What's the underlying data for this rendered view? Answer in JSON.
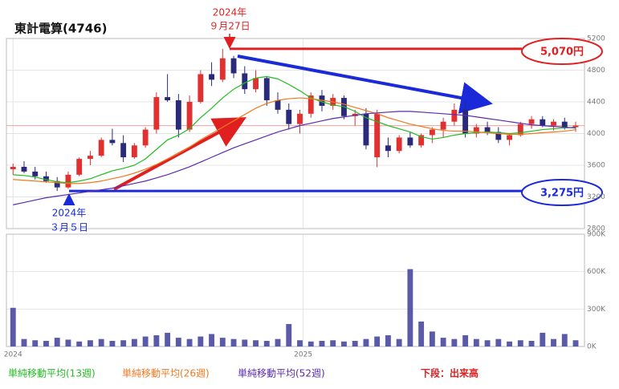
{
  "chart_data": {
    "type": "candlestick",
    "title": "東計電算(4746)",
    "x": [
      0,
      1,
      2,
      3,
      4,
      5,
      6,
      7,
      8,
      9,
      10,
      11,
      12,
      13,
      14,
      15,
      16,
      17,
      18,
      19,
      20,
      21,
      22,
      23,
      24,
      25,
      26,
      27,
      28,
      29,
      30,
      31,
      32,
      33,
      34,
      35,
      36,
      37,
      38,
      39,
      40,
      41,
      42,
      43,
      44,
      45,
      46,
      47,
      48,
      49,
      50,
      51
    ],
    "open": [
      3550,
      3580,
      3520,
      3460,
      3400,
      3320,
      3480,
      3680,
      3720,
      3920,
      3880,
      3700,
      3850,
      4050,
      4460,
      4420,
      4050,
      4400,
      4750,
      4680,
      4950,
      4760,
      4560,
      4700,
      4420,
      4300,
      4120,
      4250,
      4480,
      4350,
      4450,
      4220,
      4250,
      3700,
      3850,
      3780,
      3950,
      3850,
      3980,
      4050,
      4150,
      4300,
      4000,
      4080,
      4020,
      3920,
      3980,
      4120,
      4180,
      4100,
      4150,
      4080
    ],
    "high": [
      3620,
      3650,
      3580,
      3520,
      3450,
      3520,
      3700,
      3780,
      3950,
      4060,
      3980,
      3880,
      4080,
      4520,
      4750,
      4500,
      4480,
      4800,
      4900,
      5070,
      4980,
      4850,
      4800,
      4720,
      4520,
      4380,
      4300,
      4520,
      4550,
      4500,
      4480,
      4300,
      4320,
      4300,
      3950,
      3980,
      4020,
      4000,
      4080,
      4200,
      4380,
      4420,
      4120,
      4150,
      4080,
      4000,
      4150,
      4220,
      4220,
      4180,
      4200,
      4150
    ],
    "low": [
      3480,
      3500,
      3420,
      3380,
      3275,
      3300,
      3460,
      3600,
      3700,
      3850,
      3640,
      3680,
      3820,
      4000,
      4400,
      3950,
      4020,
      4380,
      4600,
      4650,
      4700,
      4500,
      4520,
      4350,
      4250,
      4050,
      4000,
      4200,
      4280,
      4300,
      4180,
      4100,
      3800,
      3575,
      3700,
      3750,
      3820,
      3820,
      3880,
      3950,
      4100,
      3950,
      3950,
      3980,
      3880,
      3850,
      3960,
      4060,
      4080,
      4040,
      4050,
      4020
    ],
    "close": [
      3580,
      3520,
      3460,
      3400,
      3320,
      3480,
      3680,
      3720,
      3920,
      3880,
      3700,
      3850,
      4050,
      4460,
      4420,
      4050,
      4400,
      4750,
      4680,
      4950,
      4760,
      4560,
      4700,
      4420,
      4300,
      4120,
      4250,
      4480,
      4350,
      4450,
      4220,
      4250,
      3850,
      4250,
      3780,
      3950,
      3850,
      3980,
      4050,
      4150,
      4300,
      4000,
      4080,
      4020,
      3920,
      3980,
      4120,
      4180,
      4100,
      4150,
      4080,
      4100
    ],
    "volume": [
      310000,
      60000,
      50000,
      45000,
      70000,
      55000,
      40000,
      50000,
      60000,
      45000,
      50000,
      60000,
      80000,
      90000,
      110000,
      70000,
      60000,
      80000,
      100000,
      70000,
      60000,
      55000,
      50000,
      45000,
      60000,
      180000,
      50000,
      40000,
      45000,
      50000,
      40000,
      45000,
      60000,
      80000,
      90000,
      60000,
      620000,
      200000,
      120000,
      70000,
      60000,
      90000,
      60000,
      50000,
      60000,
      40000,
      50000,
      45000,
      110000,
      60000,
      100000,
      50000
    ],
    "series": [
      {
        "name": "単純移動平均(13週)",
        "color": "#22bb22",
        "values": [
          3480,
          3470,
          3450,
          3420,
          3390,
          3380,
          3400,
          3430,
          3480,
          3530,
          3560,
          3600,
          3680,
          3800,
          3920,
          3980,
          4060,
          4200,
          4320,
          4450,
          4560,
          4640,
          4700,
          4720,
          4690,
          4620,
          4540,
          4450,
          4400,
          4360,
          4340,
          4280,
          4200,
          4150,
          4100,
          4060,
          4020,
          3960,
          3930,
          3950,
          3980,
          4000,
          4010,
          4020,
          4010,
          4000,
          4010,
          4030,
          4050,
          4060,
          4070,
          4080
        ]
      },
      {
        "name": "単純移動平均(26週)",
        "color": "#f07820",
        "values": [
          3420,
          3410,
          3400,
          3390,
          3380,
          3370,
          3370,
          3380,
          3400,
          3430,
          3460,
          3500,
          3550,
          3610,
          3680,
          3750,
          3830,
          3920,
          4000,
          4080,
          4160,
          4240,
          4320,
          4380,
          4420,
          4440,
          4450,
          4440,
          4420,
          4400,
          4370,
          4330,
          4290,
          4250,
          4200,
          4160,
          4120,
          4090,
          4060,
          4040,
          4030,
          4030,
          4020,
          4010,
          4000,
          3990,
          3990,
          4000,
          4010,
          4020,
          4030,
          4050
        ]
      },
      {
        "name": "単純移動平均(52週)",
        "color": "#5a2ab0",
        "values": [
          3100,
          3130,
          3160,
          3190,
          3210,
          3230,
          3250,
          3270,
          3290,
          3310,
          3340,
          3370,
          3400,
          3440,
          3480,
          3530,
          3580,
          3640,
          3700,
          3760,
          3820,
          3870,
          3920,
          3970,
          4020,
          4060,
          4100,
          4130,
          4160,
          4190,
          4210,
          4230,
          4250,
          4260,
          4270,
          4280,
          4280,
          4270,
          4260,
          4250,
          4240,
          4230,
          4210,
          4190,
          4170,
          4150,
          4130,
          4110,
          4100,
          4090,
          4080,
          4070
        ]
      }
    ],
    "up_color": "#e03030",
    "down_color": "#2a2a7a",
    "volume_color": "#5a5aa8",
    "xlim": [
      -0.6,
      51.8
    ],
    "xticks": [
      {
        "value": 0,
        "label": "2024"
      },
      {
        "value": 26.3,
        "label": "2025"
      }
    ],
    "ylim": [
      2800,
      5200
    ],
    "yticks": [
      2800,
      3200,
      3600,
      4000,
      4400,
      4800,
      5200
    ],
    "volume_ylim": [
      0,
      900000
    ],
    "volume_yticks": [
      {
        "value": 0,
        "label": "0K"
      },
      {
        "value": 300000,
        "label": "300K"
      },
      {
        "value": 600000,
        "label": "600K"
      },
      {
        "value": 900000,
        "label": "900K"
      }
    ],
    "annotations": [
      {
        "value": 5070,
        "label": "5,070円",
        "color": "#e02020",
        "date": [
          "2024年",
          "９月27日"
        ]
      },
      {
        "value": 3275,
        "label": "3,275円",
        "color": "#1a2ad8",
        "date": [
          "2024年",
          "３月５日"
        ]
      }
    ],
    "volume_note": "下段：出来高"
  }
}
